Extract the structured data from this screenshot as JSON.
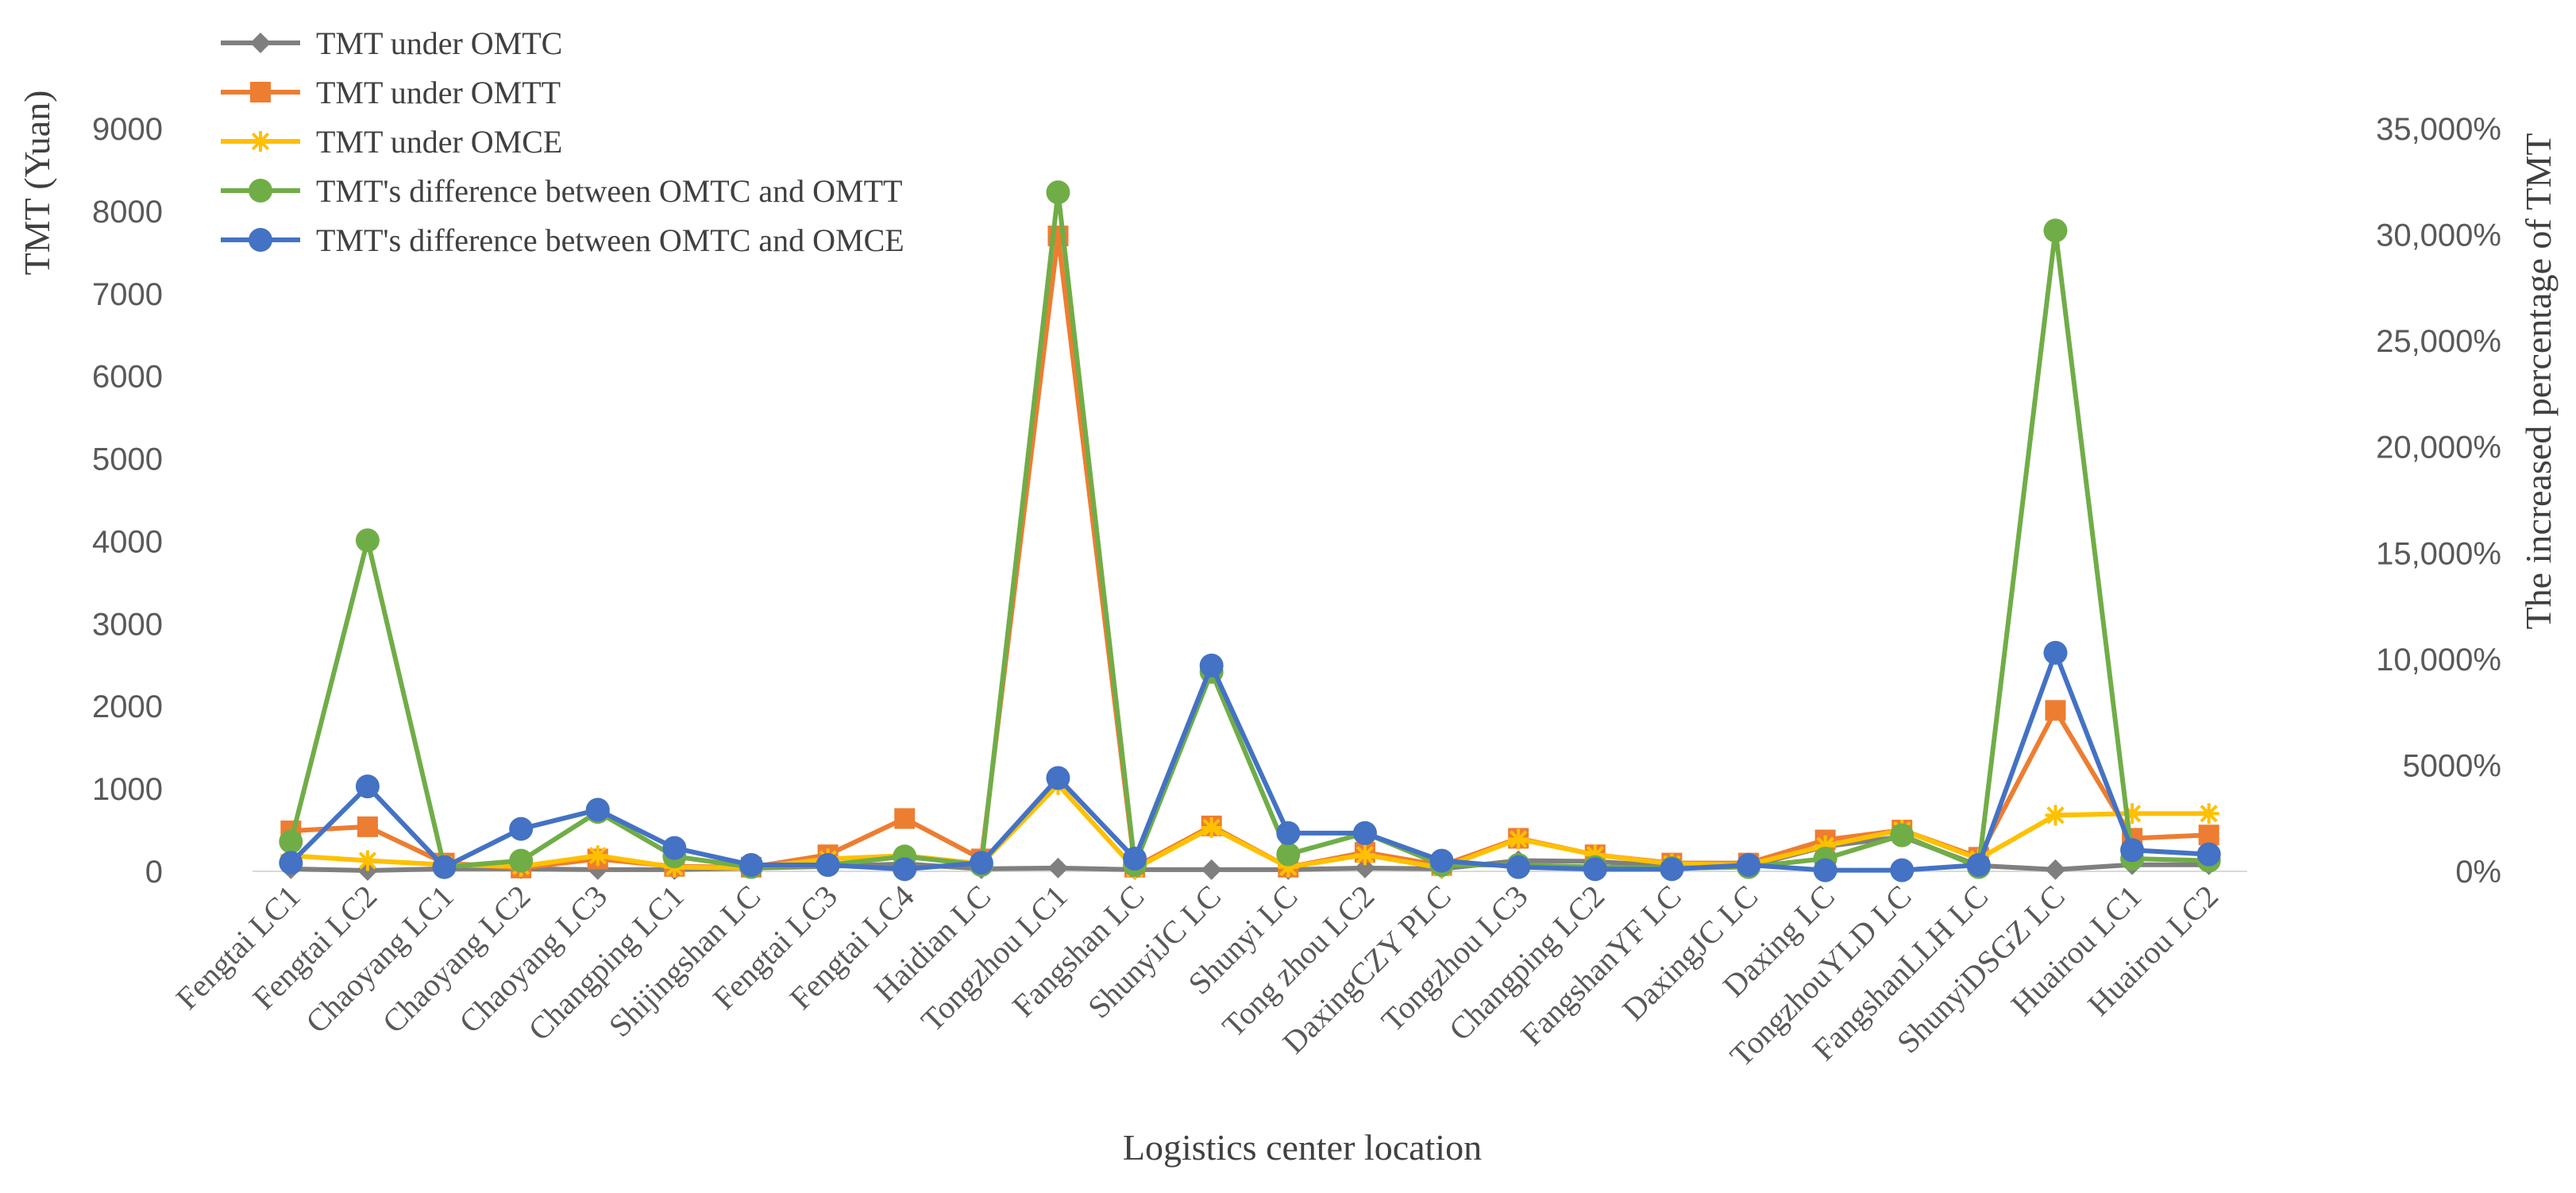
{
  "chart_data": {
    "type": "line",
    "title": "",
    "xlabel": "Logistics center location",
    "ylabel": "TMT (Yuan)",
    "y2label": "The increased percentage of TMT",
    "ylim": [
      0,
      9000
    ],
    "y2lim": [
      0,
      35000
    ],
    "yticks": [
      "0",
      "1000",
      "2000",
      "3000",
      "4000",
      "5000",
      "6000",
      "7000",
      "8000",
      "9000"
    ],
    "y2ticks": [
      "0%",
      "5000%",
      "10,000%",
      "15,000%",
      "20,000%",
      "25,000%",
      "30,000%",
      "35,000%"
    ],
    "legend_position": "top-left",
    "categories": [
      "Fengtai LC1",
      "Fengtai LC2",
      "Chaoyang LC1",
      "Chaoyang LC2",
      "Chaoyang LC3",
      "Changping LC1",
      "Shijingshan LC",
      "Fengtai LC3",
      "Fengtai LC4",
      "Haidian LC",
      "Tongzhou LC1",
      "Fangshan LC",
      "ShunyiJC LC",
      "Shunyi LC",
      "Tong zhou LC2",
      "DaxingCZY PLC",
      "Tongzhou LC3",
      "Changping LC2",
      "FangshanYF LC",
      "DaxingJC LC",
      "Daxing LC",
      "TongzhouYLD LC",
      "FangshanLLH LC",
      "ShunyiDSGZ LC",
      "Huairou LC1",
      "Huairou LC2"
    ],
    "series": [
      {
        "name": "TMT under OMTC",
        "axis": "left",
        "color": "#7f7f7f",
        "marker": "diamond",
        "values": [
          30,
          10,
          30,
          30,
          20,
          20,
          40,
          60,
          90,
          30,
          40,
          20,
          20,
          20,
          40,
          30,
          130,
          120,
          60,
          60,
          300,
          420,
          70,
          20,
          80,
          80
        ]
      },
      {
        "name": "TMT under OMTT",
        "axis": "left",
        "color": "#ed7d31",
        "marker": "square",
        "values": [
          490,
          540,
          100,
          40,
          150,
          60,
          50,
          200,
          640,
          150,
          7700,
          50,
          550,
          50,
          230,
          70,
          400,
          200,
          100,
          100,
          380,
          500,
          170,
          1950,
          400,
          440
        ]
      },
      {
        "name": "TMT under OMCE",
        "axis": "left",
        "color": "#ffc000",
        "marker": "star",
        "values": [
          190,
          130,
          80,
          60,
          190,
          50,
          40,
          150,
          190,
          90,
          1050,
          30,
          530,
          50,
          200,
          40,
          390,
          200,
          90,
          80,
          310,
          500,
          150,
          680,
          700,
          700
        ]
      },
      {
        "name": "TMT's difference between OMTC and OMTT",
        "axis": "right",
        "color": "#70ad47",
        "marker": "circle",
        "values": [
          1400,
          15600,
          200,
          500,
          2800,
          700,
          200,
          300,
          700,
          300,
          32000,
          300,
          9400,
          800,
          1800,
          300,
          300,
          200,
          150,
          200,
          600,
          1700,
          200,
          30200,
          600,
          500
        ]
      },
      {
        "name": "TMT's difference between OMTC and OMCE",
        "axis": "right",
        "color": "#4472c4",
        "marker": "circle",
        "values": [
          400,
          4000,
          200,
          2000,
          2900,
          1100,
          300,
          300,
          100,
          400,
          4400,
          600,
          9700,
          1800,
          1800,
          500,
          200,
          100,
          100,
          300,
          50,
          50,
          300,
          10300,
          1000,
          800
        ]
      }
    ]
  }
}
